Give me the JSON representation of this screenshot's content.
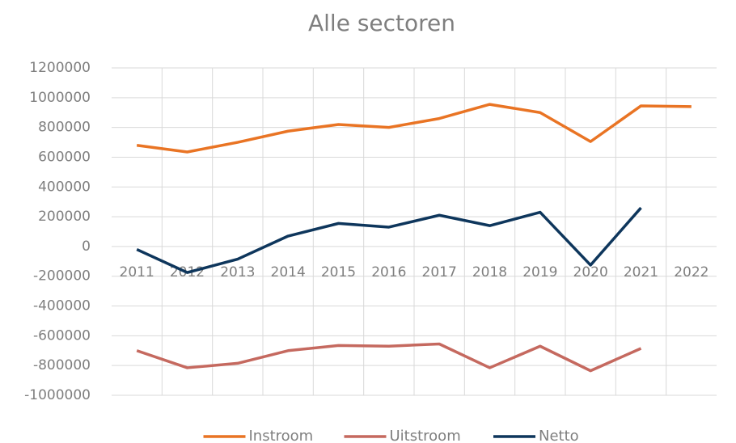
{
  "chart_data": {
    "type": "line",
    "title": "Alle sectoren",
    "categories": [
      "2011",
      "2012",
      "2013",
      "2014",
      "2015",
      "2016",
      "2017",
      "2018",
      "2019",
      "2020",
      "2021",
      "2022"
    ],
    "series": [
      {
        "name": "Instroom",
        "color": "#e97424",
        "values": [
          680000,
          635000,
          700000,
          775000,
          820000,
          800000,
          860000,
          955000,
          900000,
          705000,
          945000,
          940000
        ]
      },
      {
        "name": "Uitstroom",
        "color": "#c5695f",
        "values": [
          -700000,
          -815000,
          -785000,
          -700000,
          -665000,
          -670000,
          -655000,
          -815000,
          -670000,
          -835000,
          -685000,
          null
        ]
      },
      {
        "name": "Netto",
        "color": "#0e365c",
        "values": [
          -20000,
          -175000,
          -85000,
          70000,
          155000,
          130000,
          210000,
          140000,
          230000,
          -125000,
          260000,
          null
        ]
      }
    ],
    "ylim": [
      -1000000,
      1200000
    ],
    "yticks": [
      -1000000,
      -800000,
      -600000,
      -400000,
      -200000,
      0,
      200000,
      400000,
      600000,
      800000,
      1000000,
      1200000
    ],
    "grid": true,
    "legend": "bottom"
  }
}
